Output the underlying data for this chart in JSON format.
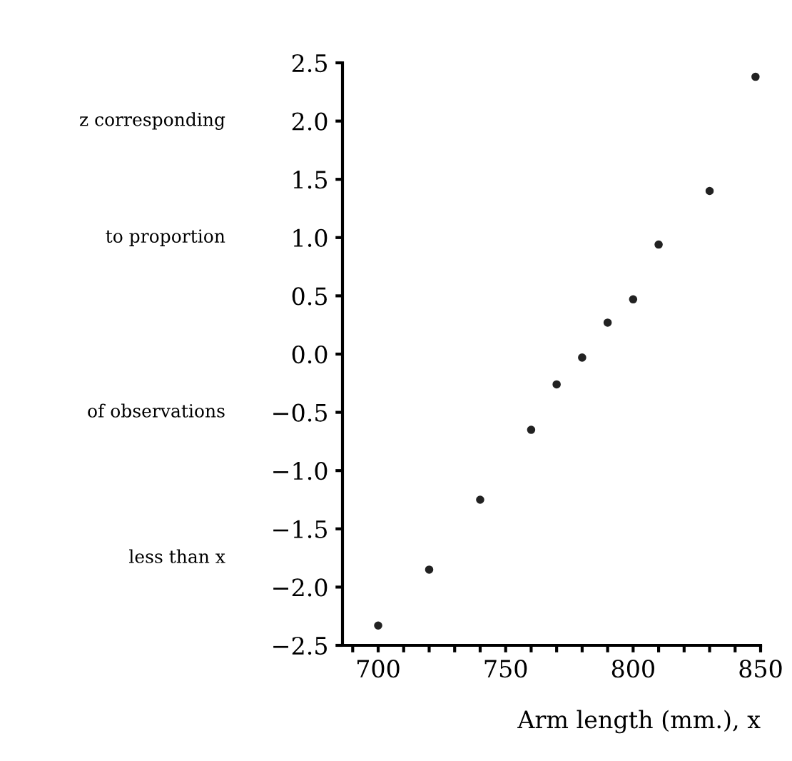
{
  "chart_data": {
    "type": "scatter",
    "xlabel": "Arm length (mm.), x",
    "ylabel": "z corresponding\nto proportion\nof observations\nless than x",
    "x": [
      700,
      720,
      740,
      760,
      770,
      780,
      790,
      800,
      810,
      830,
      848
    ],
    "values": [
      -2.33,
      -1.85,
      -1.25,
      -0.65,
      -0.26,
      -0.03,
      0.27,
      0.47,
      0.94,
      1.4,
      2.38
    ],
    "color": "#222222",
    "marker": "circle",
    "xlim": [
      686,
      850
    ],
    "xticks": [
      {
        "value": 690,
        "label": null
      },
      700,
      {
        "value": 710,
        "label": null
      },
      {
        "value": 720,
        "label": null
      },
      {
        "value": 730,
        "label": null
      },
      {
        "value": 740,
        "label": null
      },
      750,
      {
        "value": 760,
        "label": null
      },
      {
        "value": 770,
        "label": null
      },
      {
        "value": 780,
        "label": null
      },
      {
        "value": 790,
        "label": null
      },
      800,
      {
        "value": 810,
        "label": null
      },
      {
        "value": 820,
        "label": null
      },
      {
        "value": 830,
        "label": null
      },
      {
        "value": 840,
        "label": null
      },
      850
    ],
    "ylim": [
      -2.5,
      2.5
    ],
    "yticks": [
      {
        "value": 2.5,
        "label": "2.5"
      },
      {
        "value": 2.0,
        "label": "2.0"
      },
      {
        "value": 1.5,
        "label": "1.5"
      },
      {
        "value": 1.0,
        "label": "1.0"
      },
      {
        "value": 0.5,
        "label": "0.5"
      },
      {
        "value": 0.0,
        "label": "0.0"
      },
      {
        "value": -0.5,
        "label": "−0.5"
      },
      {
        "value": -1.0,
        "label": "−1.0"
      },
      {
        "value": -1.5,
        "label": "−1.5"
      },
      {
        "value": -2.0,
        "label": "−2.0"
      },
      {
        "value": -2.5,
        "label": "−2.5"
      }
    ],
    "grid": false,
    "legend": false
  }
}
